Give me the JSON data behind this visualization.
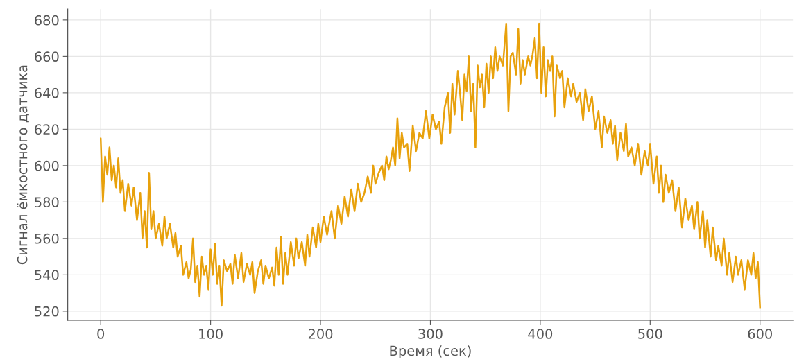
{
  "chart_data": {
    "type": "line",
    "xlabel": "Время (сек)",
    "ylabel": "Сигнал ёмкостного датчика",
    "x": [
      0,
      2,
      4,
      6,
      8,
      10,
      12,
      14,
      16,
      18,
      20,
      22,
      25,
      28,
      30,
      33,
      36,
      38,
      40,
      42,
      44,
      46,
      48,
      50,
      53,
      56,
      58,
      60,
      63,
      66,
      68,
      70,
      73,
      75,
      78,
      80,
      82,
      84,
      86,
      88,
      90,
      92,
      94,
      96,
      98,
      100,
      102,
      104,
      106,
      108,
      110,
      112,
      115,
      118,
      120,
      122,
      125,
      128,
      130,
      133,
      136,
      138,
      140,
      143,
      146,
      148,
      150,
      153,
      156,
      158,
      160,
      162,
      164,
      166,
      168,
      170,
      173,
      176,
      178,
      180,
      183,
      186,
      188,
      190,
      193,
      196,
      198,
      200,
      203,
      206,
      210,
      213,
      216,
      219,
      222,
      225,
      228,
      231,
      234,
      237,
      240,
      243,
      246,
      248,
      250,
      253,
      256,
      258,
      260,
      262,
      264,
      266,
      268,
      270,
      272,
      274,
      276,
      279,
      281,
      284,
      287,
      290,
      293,
      296,
      299,
      302,
      305,
      308,
      310,
      313,
      316,
      318,
      320,
      322,
      325,
      327,
      329,
      331,
      333,
      335,
      337,
      339,
      341,
      343,
      345,
      347,
      349,
      351,
      353,
      355,
      357,
      359,
      361,
      363,
      366,
      369,
      371,
      373,
      375,
      378,
      380,
      382,
      384,
      386,
      389,
      391,
      393,
      395,
      397,
      399,
      401,
      403,
      405,
      407,
      409,
      411,
      413,
      415,
      418,
      420,
      422,
      425,
      428,
      430,
      433,
      436,
      439,
      441,
      444,
      447,
      450,
      453,
      456,
      458,
      461,
      464,
      466,
      468,
      470,
      473,
      476,
      478,
      480,
      483,
      486,
      489,
      492,
      495,
      498,
      500,
      503,
      506,
      508,
      510,
      512,
      514,
      517,
      520,
      523,
      526,
      529,
      532,
      535,
      538,
      540,
      543,
      545,
      548,
      550,
      552,
      555,
      557,
      560,
      562,
      565,
      567,
      570,
      572,
      575,
      578,
      580,
      583,
      586,
      589,
      592,
      594,
      596,
      598,
      600
    ],
    "series": [
      {
        "color": "#e8a10c",
        "values": [
          615,
          580,
          605,
          595,
          610,
          592,
          600,
          588,
          604,
          585,
          592,
          575,
          590,
          578,
          588,
          570,
          585,
          560,
          575,
          555,
          596,
          565,
          575,
          560,
          568,
          556,
          572,
          560,
          568,
          555,
          563,
          550,
          556,
          540,
          547,
          538,
          543,
          560,
          536,
          545,
          528,
          550,
          540,
          545,
          532,
          554,
          540,
          557,
          535,
          545,
          523,
          548,
          542,
          546,
          535,
          551,
          538,
          552,
          536,
          546,
          540,
          547,
          530,
          542,
          548,
          535,
          545,
          538,
          544,
          534,
          555,
          540,
          561,
          535,
          552,
          540,
          558,
          545,
          560,
          549,
          558,
          545,
          562,
          550,
          566,
          555,
          568,
          558,
          572,
          562,
          575,
          560,
          578,
          568,
          583,
          572,
          587,
          575,
          590,
          580,
          585,
          594,
          585,
          600,
          590,
          596,
          600,
          592,
          605,
          598,
          603,
          610,
          600,
          626,
          604,
          618,
          610,
          612,
          597,
          622,
          608,
          618,
          615,
          630,
          615,
          628,
          620,
          624,
          612,
          632,
          640,
          618,
          645,
          628,
          652,
          640,
          625,
          650,
          641,
          660,
          630,
          645,
          610,
          655,
          643,
          650,
          632,
          656,
          640,
          660,
          648,
          665,
          652,
          660,
          655,
          678,
          630,
          660,
          662,
          650,
          675,
          645,
          658,
          650,
          660,
          655,
          661,
          670,
          648,
          678,
          640,
          665,
          638,
          658,
          652,
          660,
          627,
          655,
          648,
          652,
          632,
          648,
          638,
          645,
          635,
          640,
          625,
          642,
          630,
          638,
          620,
          630,
          610,
          627,
          618,
          625,
          612,
          622,
          603,
          618,
          608,
          623,
          605,
          610,
          600,
          612,
          595,
          608,
          600,
          612,
          590,
          605,
          585,
          600,
          580,
          595,
          585,
          592,
          575,
          588,
          566,
          582,
          570,
          578,
          565,
          580,
          560,
          575,
          555,
          570,
          550,
          566,
          548,
          556,
          545,
          560,
          540,
          552,
          536,
          550,
          540,
          548,
          532,
          548,
          540,
          552,
          538,
          547,
          522
        ]
      }
    ],
    "xlim": [
      -30,
      630
    ],
    "ylim": [
      515,
      686
    ],
    "xticks": [
      0,
      100,
      200,
      300,
      400,
      500,
      600
    ],
    "yticks": [
      520,
      540,
      560,
      580,
      600,
      620,
      640,
      660,
      680
    ],
    "grid": true,
    "marker": "none",
    "line_style": "solid"
  }
}
